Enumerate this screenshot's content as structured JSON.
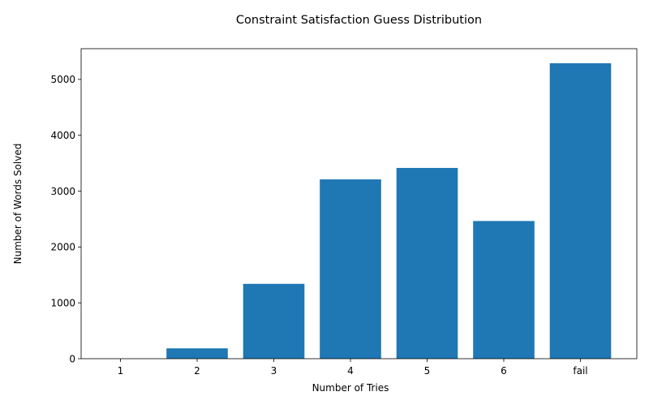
{
  "chart_data": {
    "type": "bar",
    "title": "Constraint Satisfaction Guess Distribution",
    "xlabel": "Number of Tries",
    "ylabel": "Number of Words Solved",
    "categories": [
      "1",
      "2",
      "3",
      "4",
      "5",
      "6",
      "fail"
    ],
    "values": [
      2,
      185,
      1340,
      3210,
      3415,
      2465,
      5290
    ],
    "ylim": [
      0,
      5550
    ],
    "yticks": [
      0,
      1000,
      2000,
      3000,
      4000,
      5000
    ],
    "bar_color": "#1f77b4",
    "grid": false,
    "legend": "none"
  }
}
